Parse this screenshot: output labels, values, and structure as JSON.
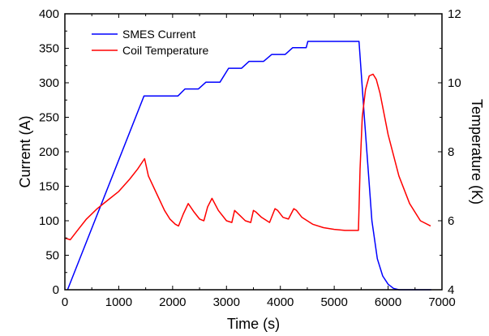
{
  "chart_data": {
    "type": "line",
    "xlabel": "Time (s)",
    "ylabel": "Current (A)",
    "y2label": "Temperature (K)",
    "xlim": [
      0,
      7000
    ],
    "ylim": [
      0,
      400
    ],
    "y2lim": [
      4,
      12
    ],
    "xticks": [
      "0",
      "1000",
      "2000",
      "3000",
      "4000",
      "5000",
      "6000",
      "7000"
    ],
    "yticks": [
      "0",
      "50",
      "100",
      "150",
      "200",
      "250",
      "300",
      "350",
      "400"
    ],
    "y2ticks": [
      "4",
      "6",
      "8",
      "10",
      "12"
    ],
    "grid": false,
    "legend_position": "top-left",
    "series": [
      {
        "name": "SMES Current",
        "axis": "left",
        "color": "#0000ff",
        "x": [
          50,
          1470,
          2100,
          2230,
          2480,
          2620,
          2880,
          3040,
          3280,
          3420,
          3690,
          3840,
          4090,
          4230,
          4480,
          4510,
          5460,
          5560,
          5700,
          5800,
          5900,
          6000,
          6100,
          6200,
          6300,
          6800
        ],
        "y": [
          0,
          281,
          281,
          291,
          291,
          301,
          301,
          321,
          321,
          331,
          331,
          341,
          341,
          351,
          351,
          360,
          360,
          250,
          100,
          45,
          20,
          8,
          2,
          0,
          0,
          0
        ]
      },
      {
        "name": "Coil Temperature",
        "axis": "right",
        "color": "#ff0000",
        "x": [
          0,
          100,
          250,
          400,
          600,
          800,
          1000,
          1200,
          1350,
          1480,
          1550,
          1700,
          1850,
          1950,
          2050,
          2110,
          2200,
          2290,
          2400,
          2500,
          2580,
          2650,
          2730,
          2850,
          3000,
          3100,
          3150,
          3250,
          3350,
          3450,
          3500,
          3550,
          3650,
          3800,
          3900,
          3950,
          4050,
          4150,
          4250,
          4300,
          4400,
          4600,
          4800,
          5000,
          5200,
          5450,
          5480,
          5520,
          5580,
          5650,
          5720,
          5780,
          5850,
          6000,
          6200,
          6400,
          6600,
          6790
        ],
        "y": [
          5.5,
          5.45,
          5.75,
          6.05,
          6.35,
          6.6,
          6.85,
          7.2,
          7.5,
          7.8,
          7.3,
          6.8,
          6.3,
          6.05,
          5.9,
          5.85,
          6.2,
          6.5,
          6.25,
          6.05,
          6.0,
          6.4,
          6.65,
          6.3,
          6.0,
          5.95,
          6.3,
          6.15,
          6.0,
          5.95,
          6.3,
          6.25,
          6.1,
          5.95,
          6.35,
          6.3,
          6.1,
          6.05,
          6.35,
          6.3,
          6.1,
          5.9,
          5.8,
          5.75,
          5.72,
          5.72,
          7.5,
          9.0,
          9.8,
          10.2,
          10.25,
          10.1,
          9.7,
          8.5,
          7.3,
          6.5,
          6.0,
          5.85
        ]
      }
    ]
  }
}
